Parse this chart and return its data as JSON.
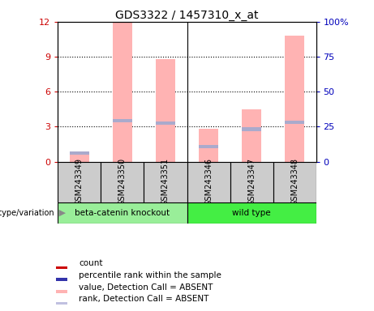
{
  "title": "GDS3322 / 1457310_x_at",
  "samples": [
    "GSM243349",
    "GSM243350",
    "GSM243351",
    "GSM243346",
    "GSM243347",
    "GSM243348"
  ],
  "pink_bar_heights": [
    0.8,
    12.0,
    8.8,
    2.8,
    4.5,
    10.8
  ],
  "blue_mark_heights": [
    0.75,
    3.5,
    3.3,
    1.3,
    2.8,
    3.4
  ],
  "ylim_left": [
    0,
    12
  ],
  "ylim_right": [
    0,
    100
  ],
  "yticks_left": [
    0,
    3,
    6,
    9,
    12
  ],
  "yticks_right": [
    0,
    25,
    50,
    75,
    100
  ],
  "ytick_labels_right": [
    "0",
    "25",
    "50",
    "75",
    "100%"
  ],
  "pink_color": "#ffb3b3",
  "blue_color": "#aaaacc",
  "group1_label": "beta-catenin knockout",
  "group2_label": "wild type",
  "group1_color": "#99ee99",
  "group2_color": "#44ee44",
  "group_label_color": "#888888",
  "legend_items": [
    {
      "color": "#cc0000",
      "label": "count"
    },
    {
      "color": "#3333aa",
      "label": "percentile rank within the sample"
    },
    {
      "color": "#ffb3b3",
      "label": "value, Detection Call = ABSENT"
    },
    {
      "color": "#c0c0e0",
      "label": "rank, Detection Call = ABSENT"
    }
  ],
  "left_axis_color": "#cc0000",
  "right_axis_color": "#0000bb",
  "bar_width": 0.45,
  "cell_gray": "#cccccc",
  "spine_color": "#000000"
}
